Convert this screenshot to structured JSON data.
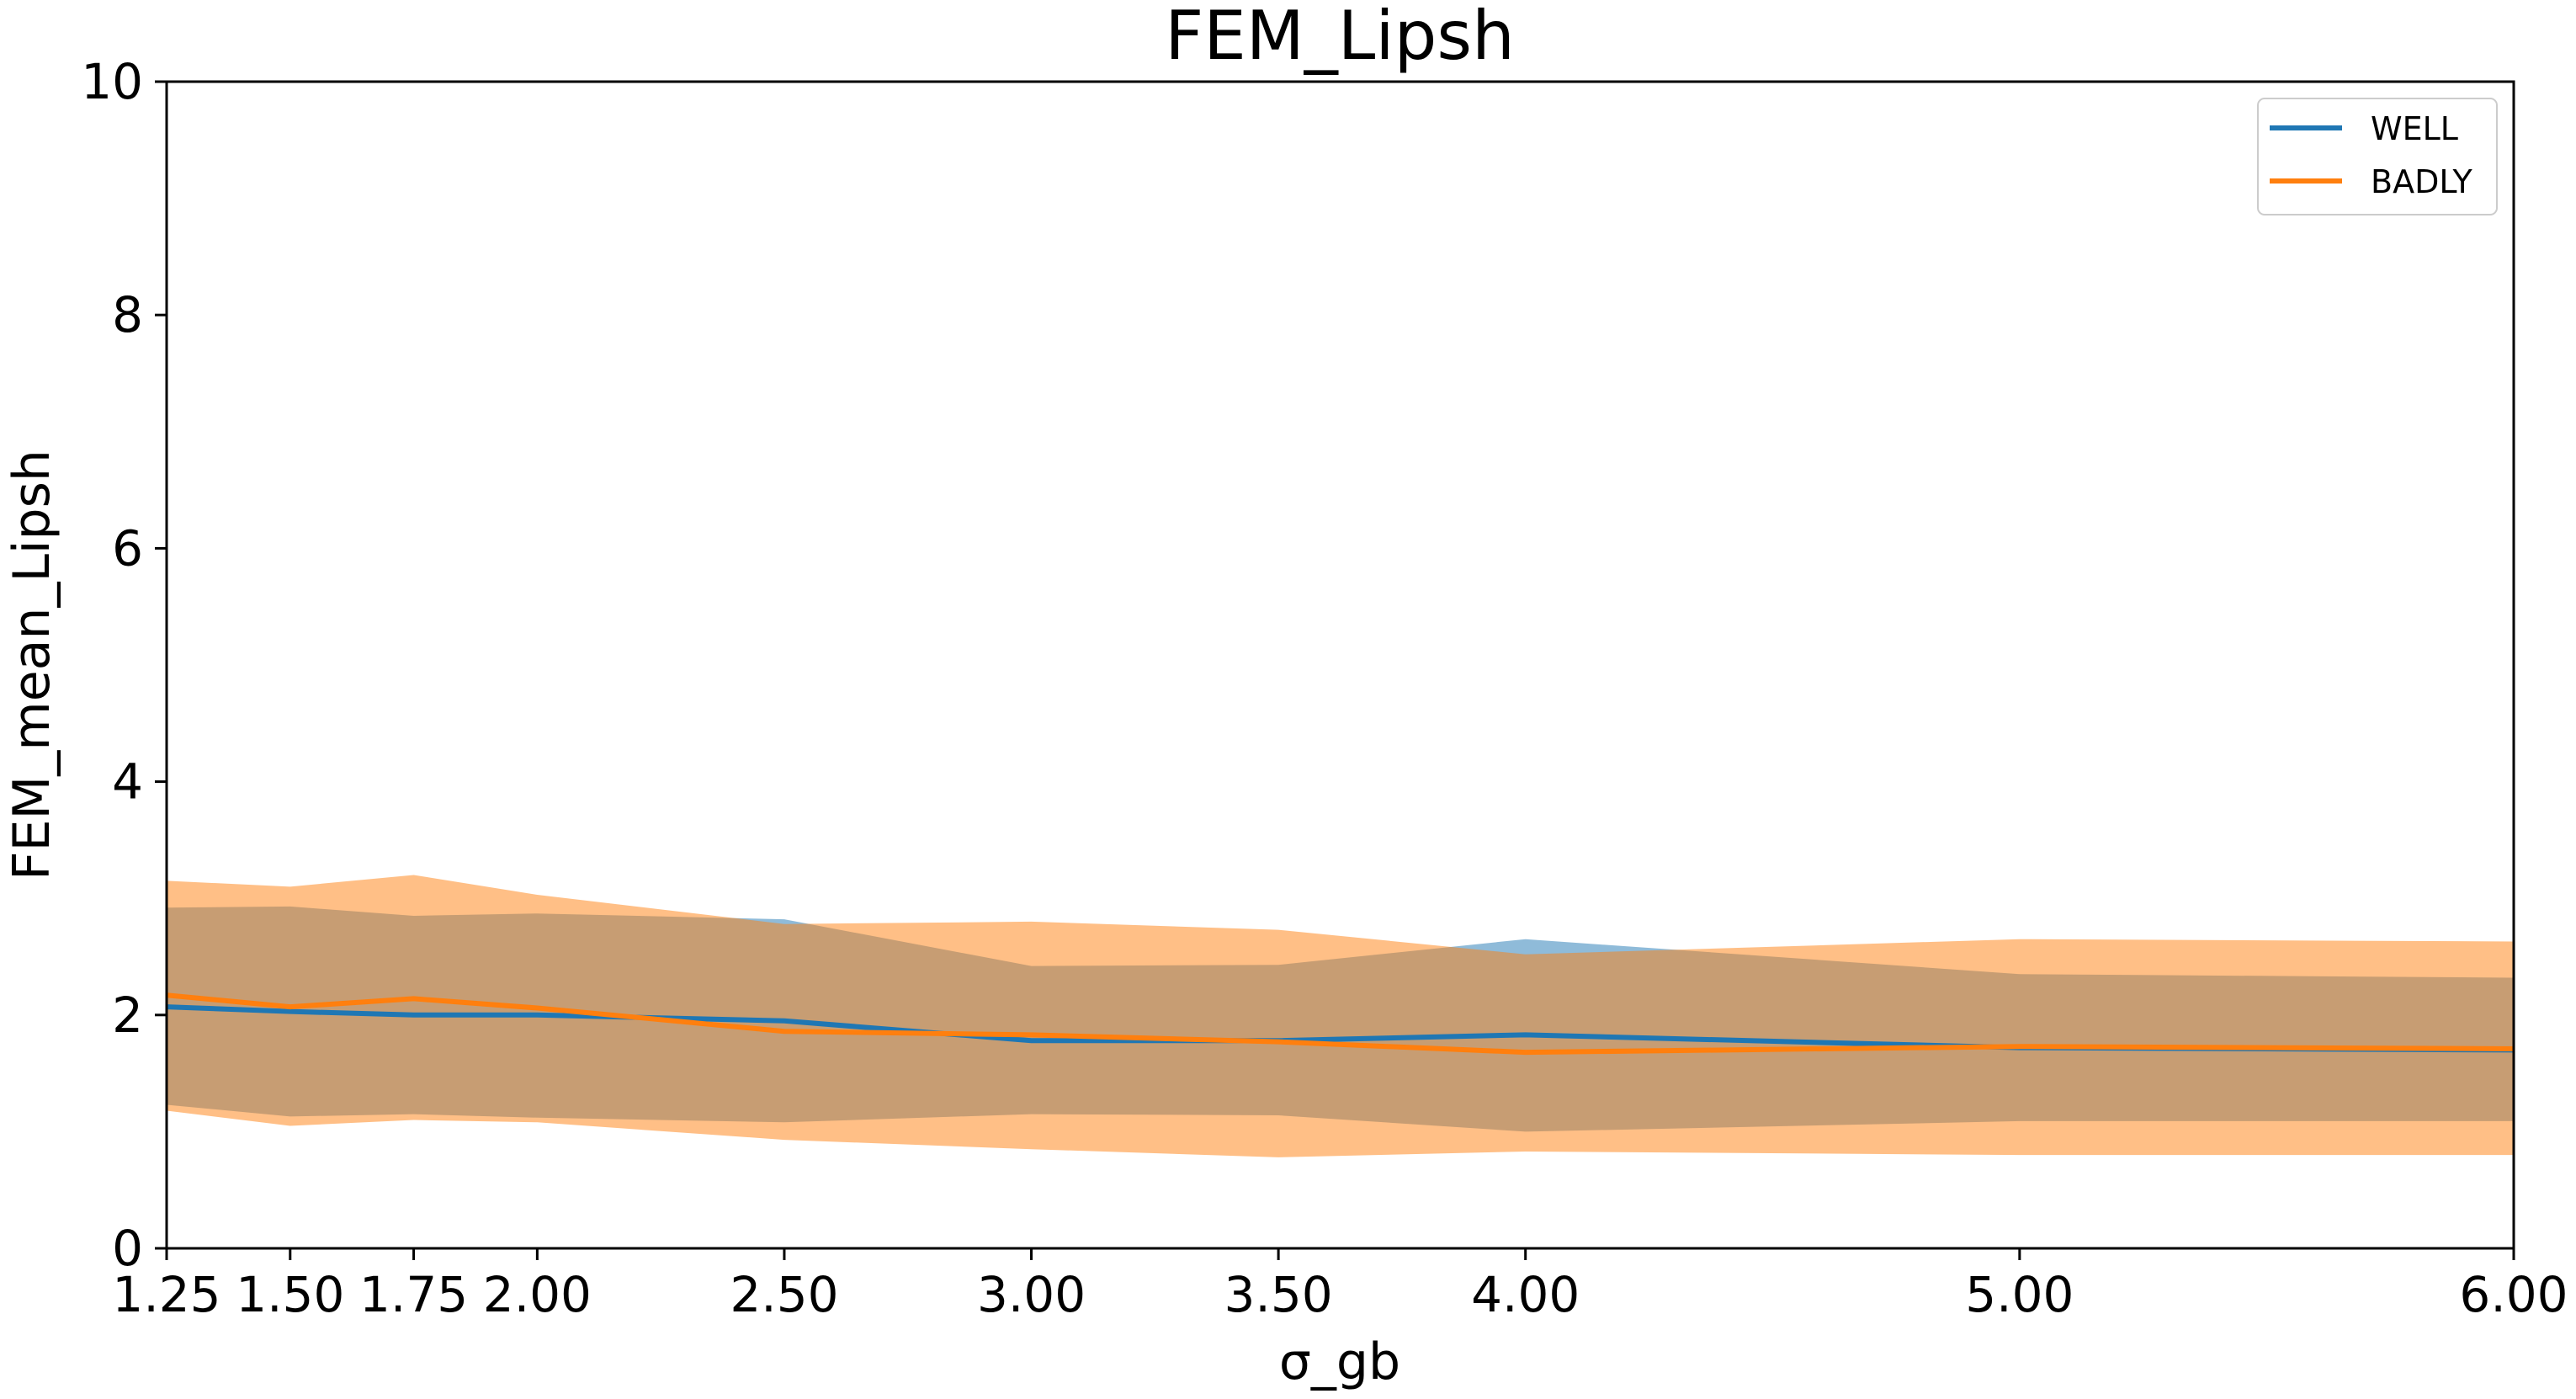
{
  "chart_data": {
    "type": "line",
    "title": "FEM_Lipsh",
    "xlabel": "σ_gb",
    "ylabel": "FEM_mean_Lipsh",
    "xlim": [
      1.25,
      6.0
    ],
    "ylim": [
      0,
      10
    ],
    "x": [
      1.25,
      1.5,
      1.75,
      2.0,
      2.5,
      3.0,
      3.5,
      4.0,
      5.0,
      6.0
    ],
    "x_tick_labels": [
      "1.25",
      "1.50",
      "1.75",
      "2.00",
      "2.50",
      "3.00",
      "3.50",
      "4.00",
      "5.00",
      "6.00"
    ],
    "y_ticks": [
      0,
      2,
      4,
      6,
      8,
      10
    ],
    "y_tick_labels": [
      "0",
      "2",
      "4",
      "6",
      "8",
      "10"
    ],
    "grid": false,
    "legend_position": "top-right",
    "series": [
      {
        "name": "WELL",
        "color": "#1f77b4",
        "band_color": "#1f77b4",
        "values": [
          2.07,
          2.03,
          2.0,
          2.0,
          1.95,
          1.78,
          1.78,
          1.83,
          1.72,
          1.7
        ],
        "band_upper": [
          2.92,
          2.93,
          2.85,
          2.87,
          2.82,
          2.42,
          2.43,
          2.65,
          2.35,
          2.32
        ],
        "band_lower": [
          1.23,
          1.13,
          1.15,
          1.12,
          1.08,
          1.15,
          1.14,
          1.0,
          1.09,
          1.09
        ]
      },
      {
        "name": "BADLY",
        "color": "#ff7f0e",
        "band_color": "#ff7f0e",
        "values": [
          2.17,
          2.07,
          2.14,
          2.06,
          1.86,
          1.83,
          1.77,
          1.68,
          1.73,
          1.71
        ],
        "band_upper": [
          3.15,
          3.1,
          3.2,
          3.03,
          2.78,
          2.8,
          2.73,
          2.52,
          2.65,
          2.63
        ],
        "band_lower": [
          1.18,
          1.05,
          1.1,
          1.08,
          0.93,
          0.85,
          0.78,
          0.83,
          0.8,
          0.8
        ]
      }
    ]
  }
}
